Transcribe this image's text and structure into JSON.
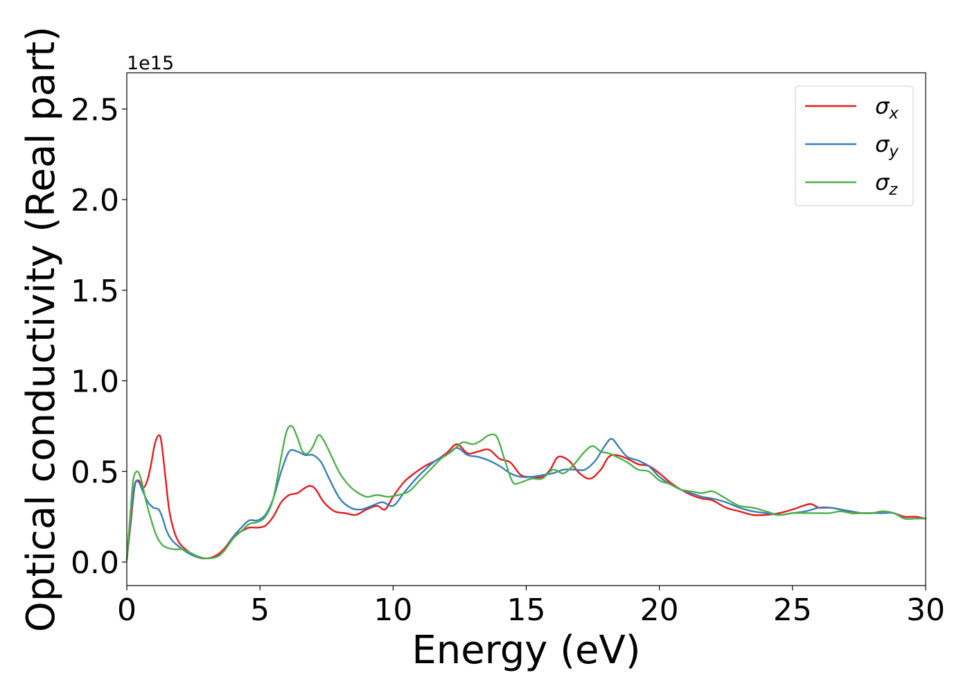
{
  "chart_data": {
    "type": "line",
    "title": "",
    "xlabel": "Energy (eV)",
    "ylabel": "Optical conductivity (Real part)",
    "y_offset_label": "1e15",
    "xlim": [
      0,
      30
    ],
    "ylim": [
      -0.13,
      2.7
    ],
    "xticks": [
      0,
      5,
      10,
      15,
      20,
      25,
      30
    ],
    "xtick_labels": [
      "0",
      "5",
      "10",
      "15",
      "20",
      "25",
      "30"
    ],
    "yticks": [
      0.0,
      0.5,
      1.0,
      1.5,
      2.0,
      2.5
    ],
    "ytick_labels": [
      "0.0",
      "0.5",
      "1.0",
      "1.5",
      "2.0",
      "2.5"
    ],
    "grid": false,
    "legend_position": "top-right",
    "series": [
      {
        "name": "σx",
        "name_base": "σ",
        "name_sub": "x",
        "color": "#e41a1c",
        "x": [
          0,
          0.15,
          0.3,
          0.45,
          0.6,
          0.75,
          0.9,
          1.05,
          1.2,
          1.3,
          1.45,
          1.6,
          1.8,
          2.0,
          2.3,
          2.6,
          3.0,
          3.4,
          3.7,
          4.0,
          4.3,
          4.6,
          4.9,
          5.2,
          5.5,
          5.8,
          6.1,
          6.4,
          6.7,
          6.9,
          7.1,
          7.4,
          7.8,
          8.2,
          8.6,
          9.0,
          9.4,
          9.7,
          10.0,
          10.4,
          10.8,
          11.2,
          11.6,
          12.0,
          12.4,
          12.8,
          13.2,
          13.6,
          14.0,
          14.4,
          14.8,
          15.2,
          15.6,
          15.9,
          16.2,
          16.6,
          17.0,
          17.4,
          17.8,
          18.1,
          18.4,
          18.8,
          19.2,
          19.6,
          20.0,
          20.4,
          20.8,
          21.2,
          21.6,
          22.0,
          22.5,
          23.0,
          23.5,
          24.0,
          24.5,
          25.0,
          25.4,
          25.7,
          26.0,
          26.4,
          26.8,
          27.2,
          27.6,
          28.0,
          28.4,
          28.8,
          29.2,
          29.6,
          30.0
        ],
        "y": [
          0.01,
          0.22,
          0.42,
          0.45,
          0.41,
          0.44,
          0.53,
          0.65,
          0.7,
          0.66,
          0.47,
          0.28,
          0.16,
          0.1,
          0.06,
          0.03,
          0.02,
          0.04,
          0.08,
          0.14,
          0.17,
          0.19,
          0.19,
          0.2,
          0.25,
          0.33,
          0.37,
          0.38,
          0.41,
          0.42,
          0.4,
          0.33,
          0.28,
          0.27,
          0.26,
          0.29,
          0.31,
          0.29,
          0.36,
          0.44,
          0.49,
          0.53,
          0.56,
          0.6,
          0.65,
          0.6,
          0.61,
          0.62,
          0.57,
          0.55,
          0.48,
          0.47,
          0.47,
          0.51,
          0.58,
          0.56,
          0.49,
          0.46,
          0.51,
          0.58,
          0.59,
          0.57,
          0.54,
          0.53,
          0.49,
          0.44,
          0.4,
          0.37,
          0.35,
          0.34,
          0.3,
          0.28,
          0.26,
          0.26,
          0.27,
          0.29,
          0.31,
          0.32,
          0.3,
          0.3,
          0.29,
          0.27,
          0.27,
          0.27,
          0.28,
          0.27,
          0.25,
          0.25,
          0.24
        ]
      },
      {
        "name": "σy",
        "name_base": "σ",
        "name_sub": "y",
        "color": "#377eb8",
        "x": [
          0,
          0.15,
          0.3,
          0.45,
          0.6,
          0.8,
          1.0,
          1.2,
          1.35,
          1.5,
          1.7,
          2.0,
          2.3,
          2.6,
          3.0,
          3.4,
          3.7,
          4.0,
          4.3,
          4.6,
          4.9,
          5.2,
          5.5,
          5.8,
          6.1,
          6.4,
          6.7,
          7.0,
          7.3,
          7.6,
          8.0,
          8.4,
          8.8,
          9.2,
          9.6,
          10.0,
          10.4,
          10.8,
          11.2,
          11.6,
          12.0,
          12.4,
          12.8,
          13.2,
          13.6,
          14.0,
          14.4,
          14.8,
          15.2,
          15.6,
          16.0,
          16.4,
          16.8,
          17.2,
          17.6,
          17.9,
          18.2,
          18.5,
          18.8,
          19.2,
          19.6,
          20.0,
          20.4,
          20.8,
          21.2,
          21.6,
          22.0,
          22.5,
          23.0,
          23.5,
          24.0,
          24.5,
          25.0,
          25.5,
          26.0,
          26.4,
          26.8,
          27.2,
          27.6,
          28.0,
          28.4,
          28.8,
          29.2,
          29.6,
          30.0
        ],
        "y": [
          0.01,
          0.25,
          0.43,
          0.44,
          0.39,
          0.33,
          0.3,
          0.29,
          0.24,
          0.17,
          0.12,
          0.08,
          0.05,
          0.03,
          0.02,
          0.03,
          0.07,
          0.14,
          0.19,
          0.23,
          0.23,
          0.26,
          0.35,
          0.5,
          0.61,
          0.61,
          0.59,
          0.59,
          0.55,
          0.46,
          0.35,
          0.3,
          0.29,
          0.31,
          0.33,
          0.31,
          0.38,
          0.45,
          0.51,
          0.56,
          0.59,
          0.63,
          0.59,
          0.58,
          0.56,
          0.53,
          0.49,
          0.47,
          0.47,
          0.48,
          0.49,
          0.51,
          0.51,
          0.51,
          0.56,
          0.63,
          0.68,
          0.63,
          0.58,
          0.56,
          0.53,
          0.47,
          0.43,
          0.4,
          0.38,
          0.36,
          0.35,
          0.33,
          0.3,
          0.28,
          0.27,
          0.26,
          0.27,
          0.28,
          0.3,
          0.3,
          0.29,
          0.28,
          0.27,
          0.27,
          0.27,
          0.27,
          0.24,
          0.24,
          0.24
        ]
      },
      {
        "name": "σz",
        "name_base": "σ",
        "name_sub": "z",
        "color": "#4daf4a",
        "x": [
          0,
          0.15,
          0.25,
          0.4,
          0.55,
          0.7,
          0.9,
          1.1,
          1.3,
          1.5,
          1.8,
          2.1,
          2.4,
          2.7,
          3.0,
          3.4,
          3.7,
          4.0,
          4.3,
          4.6,
          4.9,
          5.2,
          5.5,
          5.8,
          6.0,
          6.2,
          6.4,
          6.6,
          6.8,
          7.0,
          7.2,
          7.4,
          7.7,
          8.0,
          8.3,
          8.6,
          9.0,
          9.4,
          9.8,
          10.2,
          10.6,
          11.0,
          11.4,
          11.8,
          12.2,
          12.6,
          13.0,
          13.3,
          13.6,
          13.9,
          14.2,
          14.5,
          14.8,
          15.2,
          15.6,
          16.0,
          16.4,
          16.8,
          17.2,
          17.5,
          17.8,
          18.1,
          18.4,
          18.8,
          19.2,
          19.6,
          20.0,
          20.4,
          20.8,
          21.2,
          21.6,
          22.0,
          22.5,
          23.0,
          23.5,
          24.0,
          24.5,
          25.0,
          25.5,
          26.0,
          26.4,
          26.8,
          27.2,
          27.6,
          28.0,
          28.4,
          28.8,
          29.2,
          29.6,
          30.0
        ],
        "y": [
          0.01,
          0.3,
          0.46,
          0.5,
          0.45,
          0.35,
          0.24,
          0.15,
          0.1,
          0.08,
          0.07,
          0.07,
          0.05,
          0.03,
          0.02,
          0.03,
          0.07,
          0.13,
          0.17,
          0.21,
          0.22,
          0.25,
          0.35,
          0.58,
          0.72,
          0.75,
          0.69,
          0.61,
          0.6,
          0.64,
          0.7,
          0.67,
          0.58,
          0.49,
          0.43,
          0.39,
          0.36,
          0.37,
          0.36,
          0.37,
          0.39,
          0.45,
          0.51,
          0.57,
          0.61,
          0.66,
          0.65,
          0.67,
          0.7,
          0.69,
          0.56,
          0.44,
          0.44,
          0.46,
          0.46,
          0.51,
          0.49,
          0.54,
          0.61,
          0.64,
          0.61,
          0.6,
          0.58,
          0.55,
          0.51,
          0.5,
          0.45,
          0.43,
          0.4,
          0.39,
          0.38,
          0.39,
          0.35,
          0.31,
          0.3,
          0.28,
          0.26,
          0.27,
          0.27,
          0.27,
          0.27,
          0.28,
          0.27,
          0.27,
          0.27,
          0.28,
          0.27,
          0.24,
          0.24,
          0.24
        ]
      }
    ]
  }
}
